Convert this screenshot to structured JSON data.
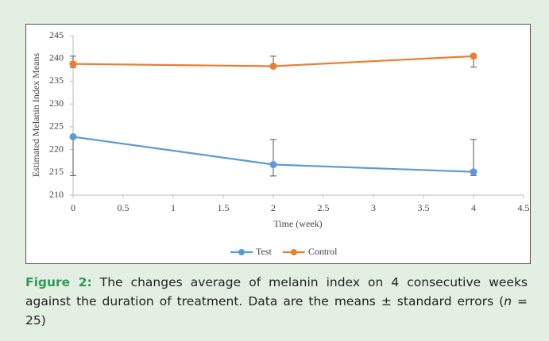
{
  "chart_data": {
    "type": "line",
    "y_label": "Estimated Melanin Index Means",
    "x_label": "Time (week)",
    "x": [
      0,
      2,
      4
    ],
    "series": [
      {
        "name": "Test",
        "color": "#5b9bd5",
        "values": [
          222.8,
          216.7,
          215.1
        ],
        "errors_minus": [
          8.5,
          2.5,
          0.8
        ],
        "errors_plus": [
          0,
          5.5,
          7.1
        ]
      },
      {
        "name": "Control",
        "color": "#ed7d31",
        "values": [
          238.8,
          238.3,
          240.5
        ],
        "errors_minus": [
          0.8,
          0,
          2.4
        ],
        "errors_plus": [
          1.7,
          2.2,
          0
        ]
      }
    ],
    "xlim": [
      0,
      4.5
    ],
    "xticks": [
      0,
      0.5,
      1,
      1.5,
      2,
      2.5,
      3,
      3.5,
      4,
      4.5
    ],
    "ylim": [
      210,
      245
    ],
    "yticks": [
      210,
      215,
      220,
      225,
      230,
      235,
      240,
      245
    ],
    "grid": false,
    "legend": "bottom"
  },
  "caption": {
    "label": "Figure 2:",
    "parts": [
      " The changes average of melanin index on 4 consecutive weeks against the duration of treatment. Data are the means ± standard errors (",
      "n",
      " = 25)"
    ]
  }
}
